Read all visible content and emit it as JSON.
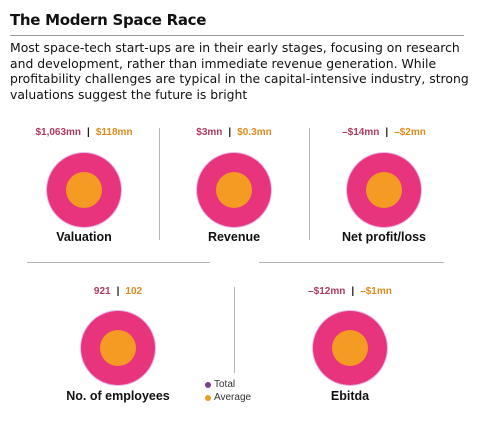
{
  "title": "The Modern Space Race",
  "subtitle": "Most space-tech start-ups are in their early stages, focusing on research and development, rather than immediate revenue generation. While profitability challenges are typical in the capital-intensive industry, strong valuations suggest the future is bright",
  "colors": {
    "total": "#e8347d",
    "average": "#f59a23",
    "total_text": "#b03a5b",
    "average_text": "#e08a1e"
  },
  "legend": {
    "total": "Total",
    "average": "Average"
  },
  "metrics": [
    {
      "label": "Valuation",
      "total": "$1,063mn",
      "average": "$118mn"
    },
    {
      "label": "Revenue",
      "total": "$3mn",
      "average": "$0.3mn"
    },
    {
      "label": "Net profit/loss",
      "total": "–$14mn",
      "average": "–$2mn"
    },
    {
      "label": "No. of employees",
      "total": "921",
      "average": "102"
    },
    {
      "label": "Ebitda",
      "total": "–$12mn",
      "average": "–$1mn"
    }
  ],
  "chart_data": {
    "type": "other",
    "categories": [
      "Valuation",
      "Revenue",
      "Net profit/loss",
      "No. of employees",
      "Ebitda"
    ],
    "series": [
      {
        "name": "Total",
        "values": [
          "$1,063mn",
          "$3mn",
          "–$14mn",
          "921",
          "–$12mn"
        ]
      },
      {
        "name": "Average",
        "values": [
          "$118mn",
          "$0.3mn",
          "–$2mn",
          "102",
          "–$1mn"
        ]
      }
    ],
    "title": "The Modern Space Race"
  }
}
